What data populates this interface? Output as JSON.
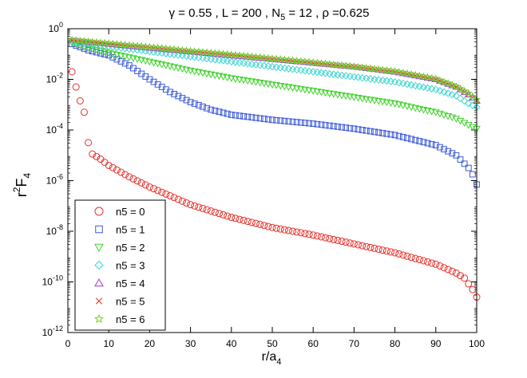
{
  "chart_data": {
    "type": "scatter",
    "title": {
      "parts": [
        "γ = 0.55 , L = 200 , N",
        "5",
        " = 12 , ρ =0.625"
      ]
    },
    "xlabel": {
      "main": "r/a",
      "sub": "4"
    },
    "ylabel": {
      "pre": "r",
      "sup": "2",
      "main": "F",
      "sub": "4"
    },
    "x_axis": {
      "min": 0,
      "max": 100,
      "ticks": [
        0,
        10,
        20,
        30,
        40,
        50,
        60,
        70,
        80,
        90,
        100
      ]
    },
    "y_axis": {
      "scale": "log",
      "min": 1e-12,
      "max": 1,
      "ticks": [
        {
          "value": 1.0,
          "base": "10",
          "exp": "0"
        },
        {
          "value": 0.01,
          "base": "10",
          "exp": "-2"
        },
        {
          "value": 0.0001,
          "base": "10",
          "exp": "-4"
        },
        {
          "value": 1e-06,
          "base": "10",
          "exp": "-6"
        },
        {
          "value": 1e-08,
          "base": "10",
          "exp": "-8"
        },
        {
          "value": 1e-10,
          "base": "10",
          "exp": "-10"
        },
        {
          "value": 1e-12,
          "base": "10",
          "exp": "-12"
        }
      ]
    },
    "legend": {
      "position": "bottom-left"
    },
    "series": [
      {
        "name": "n5 = 0",
        "marker": "circle",
        "color": "#e8302a",
        "points": [
          [
            1,
            -1.7
          ],
          [
            2,
            -2.3
          ],
          [
            3,
            -2.85
          ],
          [
            4,
            -3.3
          ],
          [
            5,
            -4.5
          ],
          [
            6,
            -4.95
          ],
          [
            8,
            -5.15
          ],
          [
            10,
            -5.4
          ],
          [
            15,
            -5.85
          ],
          [
            20,
            -6.25
          ],
          [
            30,
            -6.95
          ],
          [
            40,
            -7.45
          ],
          [
            50,
            -7.85
          ],
          [
            60,
            -8.15
          ],
          [
            70,
            -8.5
          ],
          [
            80,
            -8.85
          ],
          [
            90,
            -9.3
          ],
          [
            95,
            -9.65
          ],
          [
            97,
            -9.85
          ],
          [
            99,
            -10.3
          ],
          [
            100,
            -10.6
          ]
        ]
      },
      {
        "name": "n5 = 1",
        "marker": "square",
        "color": "#3b59d9",
        "points": [
          [
            1,
            -0.6
          ],
          [
            5,
            -0.85
          ],
          [
            10,
            -1.05
          ],
          [
            15,
            -1.45
          ],
          [
            20,
            -2.0
          ],
          [
            25,
            -2.5
          ],
          [
            30,
            -2.9
          ],
          [
            35,
            -3.2
          ],
          [
            40,
            -3.4
          ],
          [
            50,
            -3.6
          ],
          [
            60,
            -3.75
          ],
          [
            70,
            -3.95
          ],
          [
            80,
            -4.2
          ],
          [
            90,
            -4.6
          ],
          [
            95,
            -5.0
          ],
          [
            98,
            -5.5
          ],
          [
            99,
            -5.75
          ],
          [
            100,
            -6.15
          ]
        ]
      },
      {
        "name": "n5 = 2",
        "marker": "triangle-down",
        "color": "#3fd42a",
        "points": [
          [
            1,
            -0.55
          ],
          [
            5,
            -0.75
          ],
          [
            10,
            -0.95
          ],
          [
            20,
            -1.3
          ],
          [
            30,
            -1.65
          ],
          [
            40,
            -1.95
          ],
          [
            50,
            -2.2
          ],
          [
            60,
            -2.45
          ],
          [
            70,
            -2.7
          ],
          [
            80,
            -2.95
          ],
          [
            90,
            -3.3
          ],
          [
            95,
            -3.55
          ],
          [
            98,
            -3.8
          ],
          [
            100,
            -3.95
          ]
        ]
      },
      {
        "name": "n5 = 3",
        "marker": "diamond",
        "color": "#3cd6d0",
        "points": [
          [
            1,
            -0.5
          ],
          [
            10,
            -0.7
          ],
          [
            20,
            -0.9
          ],
          [
            30,
            -1.1
          ],
          [
            40,
            -1.3
          ],
          [
            50,
            -1.5
          ],
          [
            60,
            -1.7
          ],
          [
            70,
            -1.9
          ],
          [
            80,
            -2.1
          ],
          [
            90,
            -2.4
          ],
          [
            95,
            -2.65
          ],
          [
            98,
            -2.95
          ],
          [
            100,
            -3.1
          ]
        ]
      },
      {
        "name": "n5 = 4",
        "marker": "triangle-up",
        "color": "#9a3fd6",
        "points": [
          [
            1,
            -0.45
          ],
          [
            10,
            -0.6
          ],
          [
            20,
            -0.75
          ],
          [
            30,
            -0.9
          ],
          [
            40,
            -1.05
          ],
          [
            50,
            -1.2
          ],
          [
            60,
            -1.35
          ],
          [
            70,
            -1.5
          ],
          [
            80,
            -1.7
          ],
          [
            90,
            -2.0
          ],
          [
            95,
            -2.3
          ],
          [
            98,
            -2.6
          ],
          [
            100,
            -2.85
          ]
        ]
      },
      {
        "name": "n5 = 5",
        "marker": "cross",
        "color": "#e8302a",
        "points": [
          [
            1,
            -0.45
          ],
          [
            10,
            -0.6
          ],
          [
            20,
            -0.75
          ],
          [
            30,
            -0.9
          ],
          [
            40,
            -1.05
          ],
          [
            50,
            -1.2
          ],
          [
            60,
            -1.35
          ],
          [
            70,
            -1.5
          ],
          [
            80,
            -1.7
          ],
          [
            90,
            -2.0
          ],
          [
            95,
            -2.3
          ],
          [
            98,
            -2.6
          ],
          [
            100,
            -2.85
          ]
        ]
      },
      {
        "name": "n5 = 6",
        "marker": "star",
        "color": "#6dd42a",
        "points": [
          [
            1,
            -0.45
          ],
          [
            10,
            -0.58
          ],
          [
            20,
            -0.72
          ],
          [
            30,
            -0.88
          ],
          [
            40,
            -1.02
          ],
          [
            50,
            -1.18
          ],
          [
            60,
            -1.33
          ],
          [
            70,
            -1.5
          ],
          [
            80,
            -1.68
          ],
          [
            90,
            -1.98
          ],
          [
            95,
            -2.28
          ],
          [
            98,
            -2.55
          ],
          [
            100,
            -2.8
          ]
        ]
      }
    ]
  }
}
